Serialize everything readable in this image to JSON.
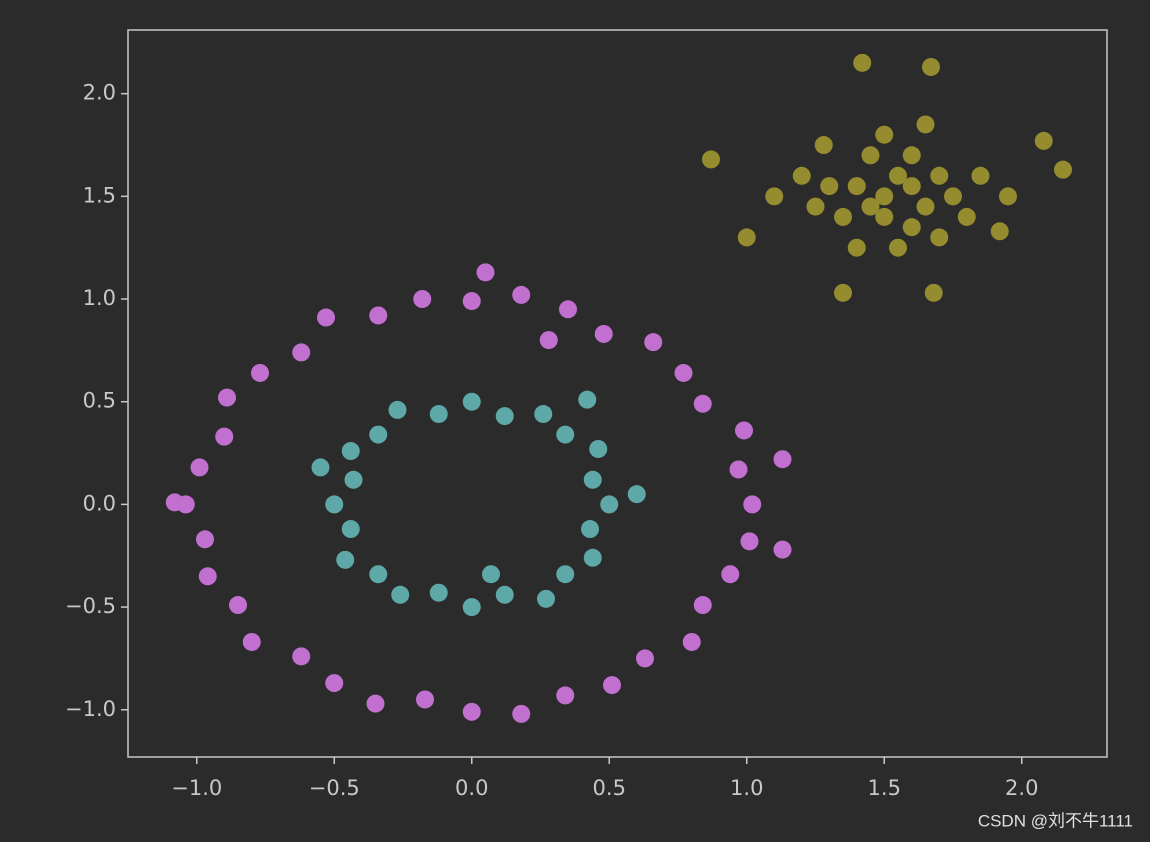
{
  "chart_data": {
    "type": "scatter",
    "xlim": [
      -1.25,
      2.31
    ],
    "ylim": [
      -1.23,
      2.31
    ],
    "xticks": [
      {
        "value": -1,
        "label": "−1.0"
      },
      {
        "value": -0.5,
        "label": "−0.5"
      },
      {
        "value": 0,
        "label": "0.0"
      },
      0.5,
      {
        "value": 1,
        "label": "1.0"
      },
      1.5,
      {
        "value": 2,
        "label": "2.0"
      }
    ],
    "yticks": [
      {
        "value": -1,
        "label": "−1.0"
      },
      {
        "value": -0.5,
        "label": "−0.5"
      },
      {
        "value": 0,
        "label": "0.0"
      },
      0.5,
      {
        "value": 1,
        "label": "1.0"
      },
      1.5,
      {
        "value": 2,
        "label": "2.0"
      }
    ],
    "series": [
      {
        "color": "#c170d0",
        "x": [
          1.02,
          0.97,
          0.99,
          0.84,
          0.77,
          0.66,
          0.48,
          0.35,
          0.18,
          0,
          -0.18,
          -0.34,
          -0.53,
          -0.62,
          -0.77,
          -0.89,
          -0.9,
          -0.99,
          -1.04,
          -0.97,
          -0.96,
          -0.85,
          -0.8,
          -0.62,
          -0.5,
          -0.35,
          -0.17,
          0,
          0.18,
          0.34,
          0.51,
          0.63,
          0.8,
          0.84,
          0.94,
          1.01,
          1.13,
          1.13,
          -1.08,
          0.05,
          0.28
        ],
        "values": [
          0,
          0.17,
          0.36,
          0.49,
          0.64,
          0.79,
          0.83,
          0.95,
          1.02,
          0.99,
          1.0,
          0.92,
          0.91,
          0.74,
          0.64,
          0.52,
          0.33,
          0.18,
          0,
          -0.17,
          -0.35,
          -0.49,
          -0.67,
          -0.74,
          -0.87,
          -0.97,
          -0.95,
          -1.01,
          -1.02,
          -0.93,
          -0.88,
          -0.75,
          -0.67,
          -0.49,
          -0.34,
          -0.18,
          0.22,
          -0.22,
          0.01,
          1.13,
          0.8
        ]
      },
      {
        "color": "#5fa8a8",
        "x": [
          0.5,
          0.44,
          0.46,
          0.34,
          0.26,
          0.12,
          0,
          -0.12,
          -0.27,
          -0.34,
          -0.44,
          -0.43,
          -0.5,
          -0.44,
          -0.46,
          -0.34,
          -0.26,
          -0.12,
          0,
          0.12,
          0.27,
          0.34,
          0.44,
          0.43,
          0.42,
          0.6,
          -0.55,
          0.07
        ],
        "values": [
          0,
          0.12,
          0.27,
          0.34,
          0.44,
          0.43,
          0.5,
          0.44,
          0.46,
          0.34,
          0.26,
          0.12,
          0,
          -0.12,
          -0.27,
          -0.34,
          -0.44,
          -0.43,
          -0.5,
          -0.44,
          -0.46,
          -0.34,
          -0.26,
          -0.12,
          0.51,
          0.05,
          0.18,
          -0.34
        ]
      },
      {
        "color": "#958b2f",
        "x": [
          1.5,
          1.6,
          1.45,
          1.55,
          1.65,
          1.4,
          1.5,
          1.7,
          1.35,
          1.6,
          1.75,
          1.3,
          1.45,
          1.6,
          1.8,
          1.25,
          1.55,
          1.4,
          1.85,
          1.2,
          1.7,
          1.5,
          1.65,
          1.95,
          1.1,
          0.87,
          2.15,
          1.42,
          1.67,
          1.35,
          1.68,
          1.0,
          2.08,
          1.92,
          1.28
        ],
        "values": [
          1.5,
          1.55,
          1.45,
          1.6,
          1.45,
          1.55,
          1.4,
          1.6,
          1.4,
          1.35,
          1.5,
          1.55,
          1.7,
          1.7,
          1.4,
          1.45,
          1.25,
          1.25,
          1.6,
          1.6,
          1.3,
          1.8,
          1.85,
          1.5,
          1.5,
          1.68,
          1.63,
          2.15,
          2.13,
          1.03,
          1.03,
          1.3,
          1.77,
          1.33,
          1.75
        ]
      }
    ],
    "watermark": "CSDN @刘不牛1111"
  }
}
